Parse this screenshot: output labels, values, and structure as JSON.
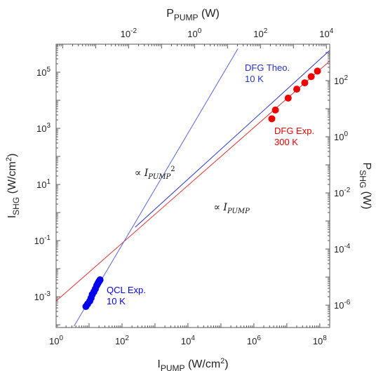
{
  "chart_data": {
    "type": "scatter",
    "x_axis": {
      "label": "I",
      "label_sub": "PUMP",
      "label_units": " (W/cm",
      "label_units_sup": "2",
      "label_units_end": ")",
      "scale": "log",
      "range": [
        1,
        200000000
      ],
      "ticks": [
        1,
        100,
        10000,
        1000000,
        100000000
      ],
      "tick_base": [
        "10",
        "10",
        "10",
        "10",
        "10"
      ],
      "tick_exp": [
        "0",
        "2",
        "4",
        "6",
        "8"
      ]
    },
    "y_axis": {
      "label": "I",
      "label_sub": "SHG",
      "label_units": " (W/cm",
      "label_units_sup": "2",
      "label_units_end": ")",
      "scale": "log",
      "range": [
        8e-05,
        1000000
      ],
      "ticks": [
        0.001,
        0.1,
        10,
        1000,
        100000
      ],
      "tick_base": [
        "10",
        "10",
        "10",
        "10",
        "10"
      ],
      "tick_exp": [
        "-3",
        "-1",
        "1",
        "3",
        "5"
      ]
    },
    "x2_axis": {
      "label": "P",
      "label_sub": "PUMP",
      "label_units": " (W)",
      "scale": "log",
      "ticks": [
        0.01,
        1,
        100,
        10000
      ],
      "tick_base": [
        "10",
        "10",
        "10",
        "10"
      ],
      "tick_exp": [
        "-2",
        "0",
        "2",
        "4"
      ]
    },
    "y2_axis": {
      "label": "P",
      "label_sub": "SHG",
      "label_units": " (W)",
      "scale": "log",
      "ticks": [
        1e-06,
        0.0001,
        0.01,
        1,
        100
      ],
      "tick_base": [
        "10",
        "10",
        "10",
        "10",
        "10"
      ],
      "tick_exp": [
        "-6",
        "-4",
        "-2",
        "0",
        "2"
      ]
    },
    "series": [
      {
        "name": "QCL Exp.",
        "name_line2": "10 K",
        "kind": "scatter",
        "color": "#0000ee",
        "points": [
          [
            8.0,
            0.00045
          ],
          [
            9.0,
            0.00055
          ],
          [
            10.5,
            0.0007
          ],
          [
            11.5,
            0.0009
          ],
          [
            12.5,
            0.0012
          ],
          [
            14.0,
            0.0015
          ],
          [
            15.5,
            0.0019
          ],
          [
            17.0,
            0.0025
          ],
          [
            18.5,
            0.003
          ],
          [
            20.0,
            0.0035
          ],
          [
            21.5,
            0.004
          ]
        ]
      },
      {
        "name": "DFG Exp.",
        "name_line2": "300 K",
        "kind": "scatter",
        "color": "#ee0000",
        "points": [
          [
            3500000,
            2200
          ],
          [
            4500000,
            4500
          ],
          [
            11000000,
            12000
          ],
          [
            20000000,
            25000
          ],
          [
            35000000,
            42000
          ],
          [
            55000000,
            70000
          ],
          [
            85000000,
            110000
          ]
        ]
      },
      {
        "name": "DFG Theo.",
        "name_line2": "10 K",
        "kind": "line",
        "color": "#2233cc",
        "points": [
          [
            250,
            0.3
          ],
          [
            200000000,
            600000
          ]
        ]
      },
      {
        "kind": "line",
        "color": "#e23030",
        "points": [
          [
            1,
            0.0007
          ],
          [
            200000000,
            250000
          ]
        ]
      },
      {
        "kind": "line",
        "color": "#5566dd",
        "points": [
          [
            3.5,
            9e-05
          ],
          [
            330000,
            700000
          ]
        ]
      }
    ],
    "annotations": [
      {
        "text": "∝ ",
        "italic": "I",
        "sub": "PUMP",
        "sup": "2",
        "at": [
          240,
          20
        ]
      },
      {
        "text": "∝ ",
        "italic": "I",
        "sub": "PUMP",
        "sup": "",
        "at": [
          60000,
          1.2
        ]
      }
    ],
    "grid": false
  }
}
